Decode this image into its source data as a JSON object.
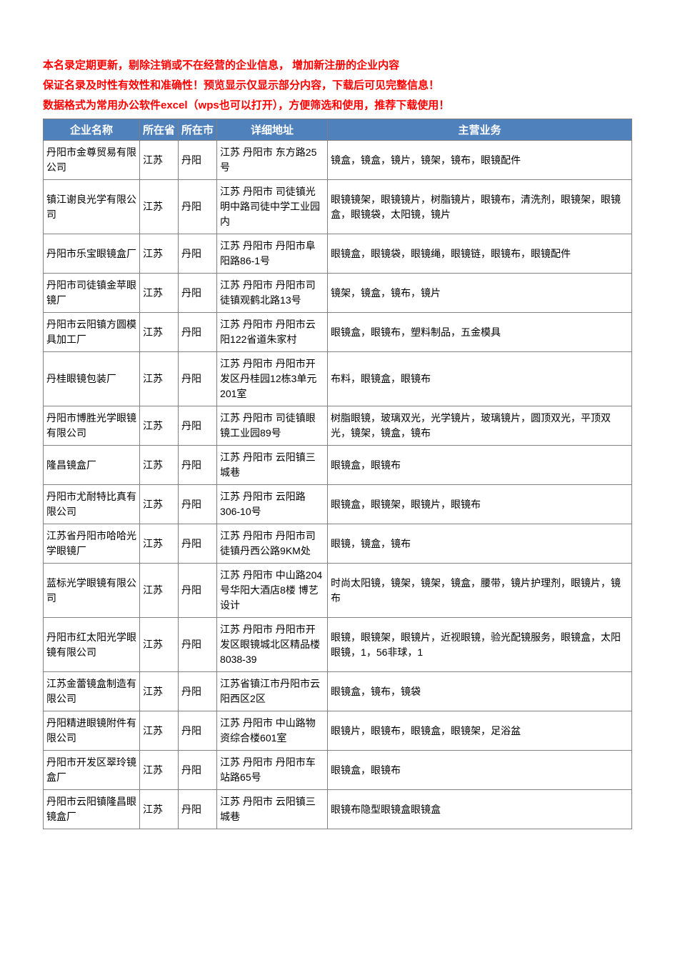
{
  "notices": [
    "本名录定期更新，剔除注销或不在经营的企业信息， 增加新注册的企业内容",
    "保证名录及时性有效性和准确性！预览显示仅显示部分内容，下载后可见完整信息！",
    "数据格式为常用办公软件excel（wps也可以打开），方便筛选和使用，推荐下载使用！"
  ],
  "columns": [
    "企业名称",
    "所在省",
    "所在市",
    "详细地址",
    "主营业务"
  ],
  "rows": [
    {
      "name": "丹阳市金尊贸易有限公司",
      "province": "江苏",
      "city": "丹阳",
      "address": "江苏 丹阳市 东方路25号",
      "business": "镜盒，镜盒，镜片，镜架，镜布，眼镜配件"
    },
    {
      "name": "镇江谢良光学有限公司",
      "province": "江苏",
      "city": "丹阳",
      "address": "江苏 丹阳市 司徒镇光明中路司徒中学工业园内",
      "business": "眼镜镜架，眼镜镜片，树脂镜片，眼镜布，清洗剂，眼镜架，眼镜盒，眼镜袋，太阳镜，镜片"
    },
    {
      "name": "丹阳市乐宝眼镜盒厂",
      "province": "江苏",
      "city": "丹阳",
      "address": "江苏 丹阳市 丹阳市阜阳路86-1号",
      "business": "眼镜盒，眼镜袋，眼镜绳，眼镜链，眼镜布，眼镜配件"
    },
    {
      "name": "丹阳市司徒镇金苹眼镜厂",
      "province": "江苏",
      "city": "丹阳",
      "address": "江苏 丹阳市 丹阳市司徒镇观鹤北路13号",
      "business": "镜架，镜盒，镜布，镜片"
    },
    {
      "name": "丹阳市云阳镇方圆模具加工厂",
      "province": "江苏",
      "city": "丹阳",
      "address": "江苏 丹阳市 丹阳市云阳122省道朱家村",
      "business": "眼镜盒，眼镜布，塑料制品，五金模具"
    },
    {
      "name": "丹桂眼镜包装厂",
      "province": "江苏",
      "city": "丹阳",
      "address": "江苏 丹阳市 丹阳市开发区丹桂园12栋3单元201室",
      "business": "布料，眼镜盒，眼镜布"
    },
    {
      "name": "丹阳市博胜光学眼镜有限公司",
      "province": "江苏",
      "city": "丹阳",
      "address": "江苏 丹阳市 司徒镇眼镜工业园89号",
      "business": "树脂眼镜，玻璃双光，光学镜片，玻璃镜片，圆顶双光，平顶双光，镜架，镜盒，镜布"
    },
    {
      "name": "隆昌镜盒厂",
      "province": "江苏",
      "city": "丹阳",
      "address": "江苏 丹阳市 云阳镇三城巷",
      "business": "眼镜盒，眼镜布"
    },
    {
      "name": "丹阳市尤耐特比真有限公司",
      "province": "江苏",
      "city": "丹阳",
      "address": "江苏 丹阳市 云阳路306-10号",
      "business": "眼镜盒，眼镜架，眼镜片，眼镜布"
    },
    {
      "name": "江苏省丹阳市哈哈光学眼镜厂",
      "province": "江苏",
      "city": "丹阳",
      "address": "江苏 丹阳市 丹阳市司徒镇丹西公路9KM处",
      "business": "眼镜，镜盒，镜布"
    },
    {
      "name": "蓝标光学眼镜有限公司",
      "province": "江苏",
      "city": "丹阳",
      "address": "江苏 丹阳市 中山路204号华阳大酒店8楼 博艺设计",
      "business": "时尚太阳镜，镜架，镜架，镜盒，腰带，镜片护理剂，眼镜片，镜布"
    },
    {
      "name": "丹阳市红太阳光学眼镜有限公司",
      "province": "江苏",
      "city": "丹阳",
      "address": "江苏 丹阳市 丹阳市开发区眼镜城北区精品楼8038-39",
      "business": "眼镜，眼镜架，眼镜片，近视眼镜，验光配镜服务，眼镜盒，太阳眼镜，1，56非球，1"
    },
    {
      "name": "江苏金蕾镜盒制造有限公司",
      "province": "江苏",
      "city": "丹阳",
      "address": "江苏省镇江市丹阳市云阳西区2区",
      "business": "眼镜盒，镜布，镜袋"
    },
    {
      "name": "丹阳精进眼镜附件有限公司",
      "province": "江苏",
      "city": "丹阳",
      "address": "江苏 丹阳市 中山路物资综合楼601室",
      "business": "眼镜片，眼镜布，眼镜盒，眼镜架，足浴盆"
    },
    {
      "name": "丹阳市开发区翠玲镜盒厂",
      "province": "江苏",
      "city": "丹阳",
      "address": "江苏 丹阳市 丹阳市车站路65号",
      "business": "眼镜盒，眼镜布"
    },
    {
      "name": "丹阳市云阳镇隆昌眼镜盒厂",
      "province": "江苏",
      "city": "丹阳",
      "address": "江苏 丹阳市 云阳镇三城巷",
      "business": "眼镜布隐型眼镜盒眼镜盒"
    }
  ],
  "styling": {
    "header_bg": "#4f81bd",
    "header_fg": "#ffffff",
    "border_color": "#808080",
    "notice_color": "#ff0000",
    "text_color": "#000000",
    "body_bg": "#ffffff",
    "font_family": "Microsoft YaHei",
    "header_fontsize": 15,
    "cell_fontsize": 14,
    "notice_fontsize": 15
  }
}
